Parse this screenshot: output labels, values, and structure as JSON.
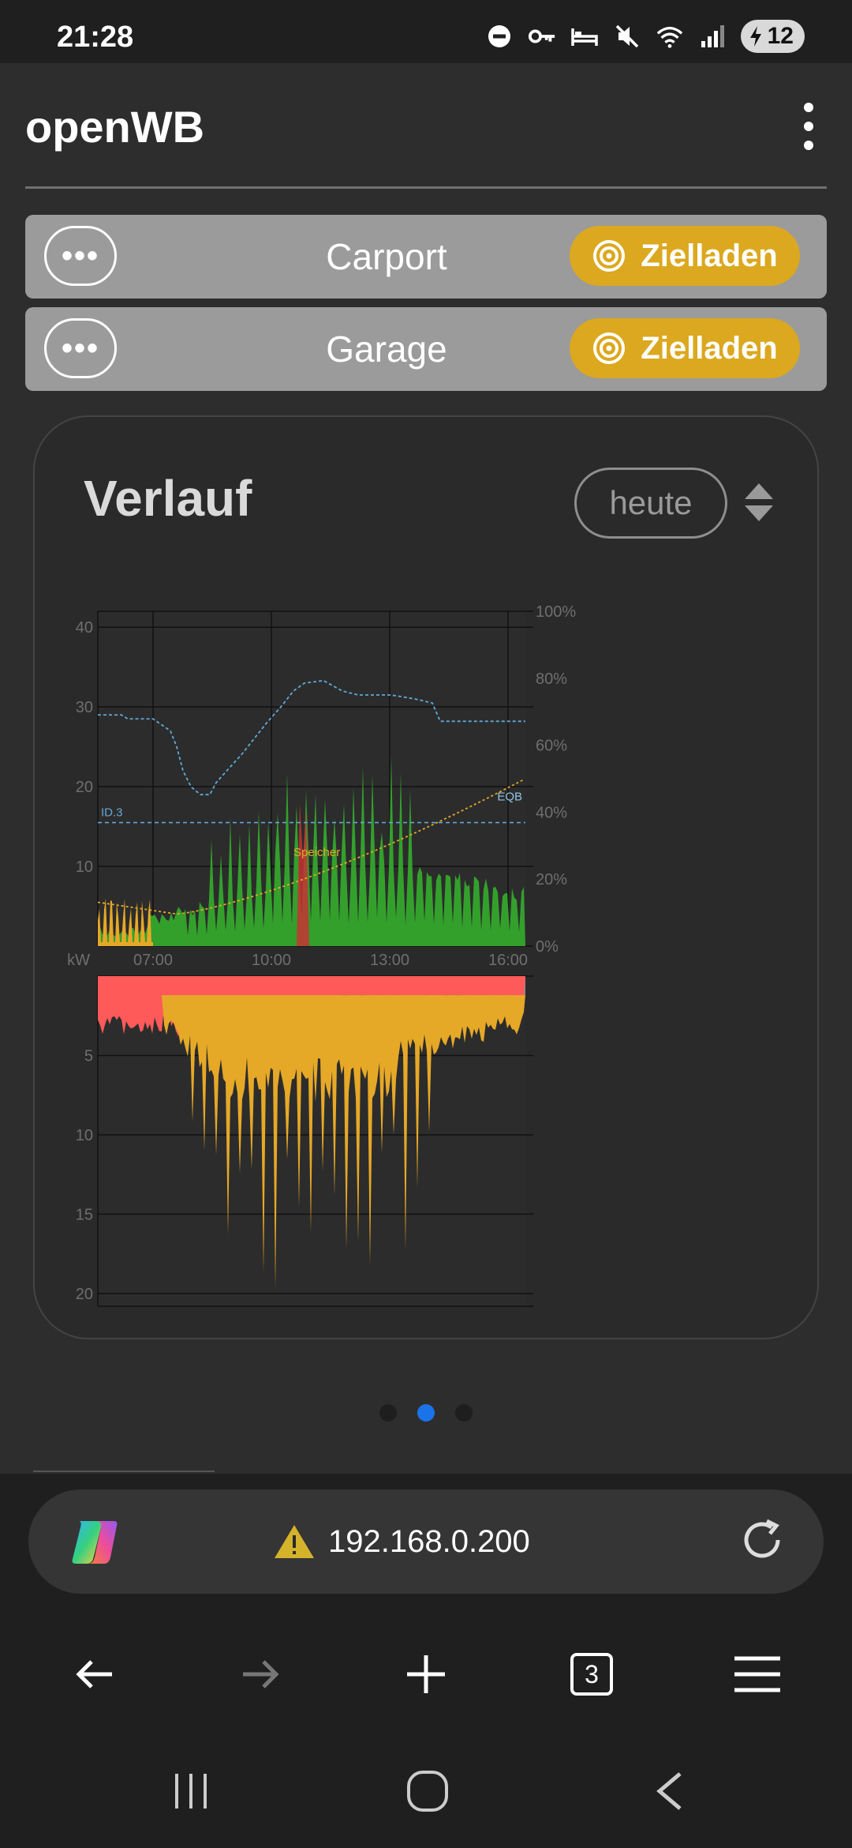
{
  "status_bar": {
    "time": "21:28",
    "icons": [
      "do-not-disturb-icon",
      "key-icon",
      "bed-icon",
      "mute-icon",
      "wifi-icon",
      "signal-icon"
    ],
    "battery": "12"
  },
  "app": {
    "title": "openWB"
  },
  "charge_points": [
    {
      "name": "Carport",
      "mode": "Zielladen",
      "menu": "•••"
    },
    {
      "name": "Garage",
      "mode": "Zielladen",
      "menu": "•••"
    }
  ],
  "history": {
    "title": "Verlauf",
    "range": "heute",
    "chart_data": {
      "type": "area",
      "x_ticks": [
        "07:00",
        "10:00",
        "13:00",
        "16:00"
      ],
      "upper": {
        "y_left_ticks": [
          "40",
          "30",
          "20",
          "10"
        ],
        "y_right_ticks": [
          "100%",
          "80%",
          "60%",
          "40%",
          "20%",
          "0%"
        ],
        "unit": "kW",
        "ylim": [
          0,
          42
        ],
        "labels": [
          "ID.3",
          "EQB",
          "Speicher"
        ]
      },
      "lower": {
        "y_ticks": [
          "5",
          "10",
          "15",
          "20"
        ],
        "ylim": [
          0,
          21
        ]
      },
      "colors": {
        "pv": "#33a02c",
        "house": "#e6a827",
        "grid": "#ff5a5a",
        "soc_line": "#62a8d8",
        "storage_soc": "#e6a827"
      }
    }
  },
  "pager": {
    "count": 3,
    "active": 1
  },
  "browser": {
    "url": "192.168.0.200",
    "tab_count": "3"
  }
}
